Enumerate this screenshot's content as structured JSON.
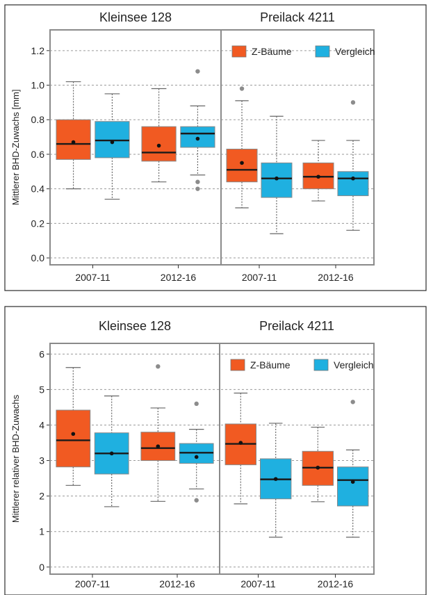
{
  "colors": {
    "z_baeume": "#F15A22",
    "vergleich": "#1FB0E0"
  },
  "chart_data": [
    {
      "type": "box",
      "ylabel": "Mittlerer BHD-Zuwachs [mm]",
      "ylim": [
        -0.04,
        1.32
      ],
      "yticks": [
        "0.0",
        "0.2",
        "0.4",
        "0.6",
        "0.8",
        "1.0",
        "1.2"
      ],
      "yticks_values": [
        0,
        0.2,
        0.4,
        0.6,
        0.8,
        1.0,
        1.2
      ],
      "legend": {
        "placement": "top-right",
        "labels": [
          "Z-Bäume",
          "Vergleich"
        ]
      },
      "facets": [
        {
          "title": "Kleinsee 128",
          "categories": [
            "2007-11",
            "2012-16"
          ],
          "groups": [
            [
              {
                "series": "Z-Bäume",
                "min": 0.4,
                "q1": 0.57,
                "median": 0.66,
                "q3": 0.8,
                "max": 1.02,
                "mean": 0.67,
                "outliers": []
              },
              {
                "series": "Vergleich",
                "min": 0.34,
                "q1": 0.58,
                "median": 0.68,
                "q3": 0.79,
                "max": 0.95,
                "mean": 0.67,
                "outliers": []
              }
            ],
            [
              {
                "series": "Z-Bäume",
                "min": 0.44,
                "q1": 0.56,
                "median": 0.61,
                "q3": 0.76,
                "max": 0.98,
                "mean": 0.65,
                "outliers": []
              },
              {
                "series": "Vergleich",
                "min": 0.48,
                "q1": 0.64,
                "median": 0.72,
                "q3": 0.76,
                "max": 0.88,
                "mean": 0.69,
                "outliers": [
                  1.08,
                  0.44,
                  0.4
                ]
              }
            ]
          ]
        },
        {
          "title": "Preilack 4211",
          "categories": [
            "2007-11",
            "2012-16"
          ],
          "groups": [
            [
              {
                "series": "Z-Bäume",
                "min": 0.29,
                "q1": 0.44,
                "median": 0.51,
                "q3": 0.63,
                "max": 0.91,
                "mean": 0.55,
                "outliers": [
                  0.98
                ]
              },
              {
                "series": "Vergleich",
                "min": 0.14,
                "q1": 0.35,
                "median": 0.46,
                "q3": 0.55,
                "max": 0.82,
                "mean": 0.46,
                "outliers": []
              }
            ],
            [
              {
                "series": "Z-Bäume",
                "min": 0.33,
                "q1": 0.4,
                "median": 0.47,
                "q3": 0.55,
                "max": 0.68,
                "mean": 0.47,
                "outliers": []
              },
              {
                "series": "Vergleich",
                "min": 0.16,
                "q1": 0.36,
                "median": 0.46,
                "q3": 0.5,
                "max": 0.68,
                "mean": 0.46,
                "outliers": [
                  0.9
                ]
              }
            ]
          ]
        }
      ]
    },
    {
      "type": "box",
      "ylabel": "Mittlerer relativer BHD-Zuwachs",
      "ylim": [
        -0.2,
        6.3
      ],
      "yticks": [
        "0",
        "1",
        "2",
        "3",
        "4",
        "5",
        "6"
      ],
      "yticks_values": [
        0,
        1,
        2,
        3,
        4,
        5,
        6
      ],
      "legend": {
        "placement": "top-right",
        "labels": [
          "Z-Bäume",
          "Vergleich"
        ]
      },
      "facets": [
        {
          "title": "Kleinsee 128",
          "categories": [
            "2007-11",
            "2012-16"
          ],
          "groups": [
            [
              {
                "series": "Z-Bäume",
                "min": 2.3,
                "q1": 2.82,
                "median": 3.57,
                "q3": 4.42,
                "max": 5.62,
                "mean": 3.75,
                "outliers": []
              },
              {
                "series": "Vergleich",
                "min": 1.7,
                "q1": 2.62,
                "median": 3.2,
                "q3": 3.78,
                "max": 4.82,
                "mean": 3.2,
                "outliers": []
              }
            ],
            [
              {
                "series": "Z-Bäume",
                "min": 1.85,
                "q1": 3.0,
                "median": 3.35,
                "q3": 3.8,
                "max": 4.48,
                "mean": 3.4,
                "outliers": [
                  5.65
                ]
              },
              {
                "series": "Vergleich",
                "min": 2.2,
                "q1": 2.92,
                "median": 3.22,
                "q3": 3.48,
                "max": 3.88,
                "mean": 3.1,
                "outliers": [
                  4.6,
                  1.88
                ]
              }
            ]
          ]
        },
        {
          "title": "Preilack 4211",
          "categories": [
            "2007-11",
            "2012-16"
          ],
          "groups": [
            [
              {
                "series": "Z-Bäume",
                "min": 1.78,
                "q1": 2.88,
                "median": 3.47,
                "q3": 4.03,
                "max": 4.9,
                "mean": 3.5,
                "outliers": []
              },
              {
                "series": "Vergleich",
                "min": 0.84,
                "q1": 1.92,
                "median": 2.47,
                "q3": 3.05,
                "max": 4.05,
                "mean": 2.48,
                "outliers": []
              }
            ],
            [
              {
                "series": "Z-Bäume",
                "min": 1.84,
                "q1": 2.3,
                "median": 2.8,
                "q3": 3.26,
                "max": 3.94,
                "mean": 2.8,
                "outliers": []
              },
              {
                "series": "Vergleich",
                "min": 0.84,
                "q1": 1.72,
                "median": 2.45,
                "q3": 2.82,
                "max": 3.3,
                "mean": 2.4,
                "outliers": [
                  4.65
                ]
              }
            ]
          ]
        }
      ]
    }
  ]
}
